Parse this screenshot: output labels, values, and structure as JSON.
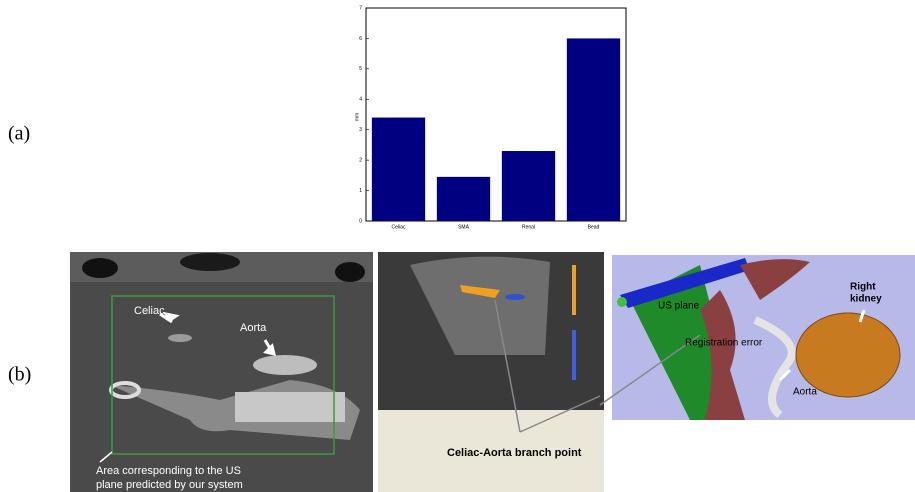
{
  "panel_labels": [
    "(a)",
    "(b)"
  ],
  "chart_data": {
    "type": "bar",
    "y_label": "mm",
    "categories": [
      "Celiac",
      "SMA",
      "Renal",
      "Bead"
    ],
    "values": [
      3.4,
      1.45,
      2.3,
      6.0
    ],
    "color": "#000080",
    "ylim": [
      0,
      7
    ],
    "yticks": [
      0,
      1,
      2,
      3,
      4,
      5,
      6,
      7
    ],
    "grid": false
  },
  "ct_image": {
    "labels": [
      "Celiac",
      "Aorta"
    ],
    "caption_lines": [
      "Area corresponding to the US",
      "plane predicted by our system"
    ]
  },
  "us_image": {
    "caption": "Celiac-Aorta branch point"
  },
  "render_image": {
    "labels": [
      "US plane",
      "Registration error",
      "Aorta"
    ],
    "kidney_lines": [
      "Right",
      "kidney"
    ]
  }
}
